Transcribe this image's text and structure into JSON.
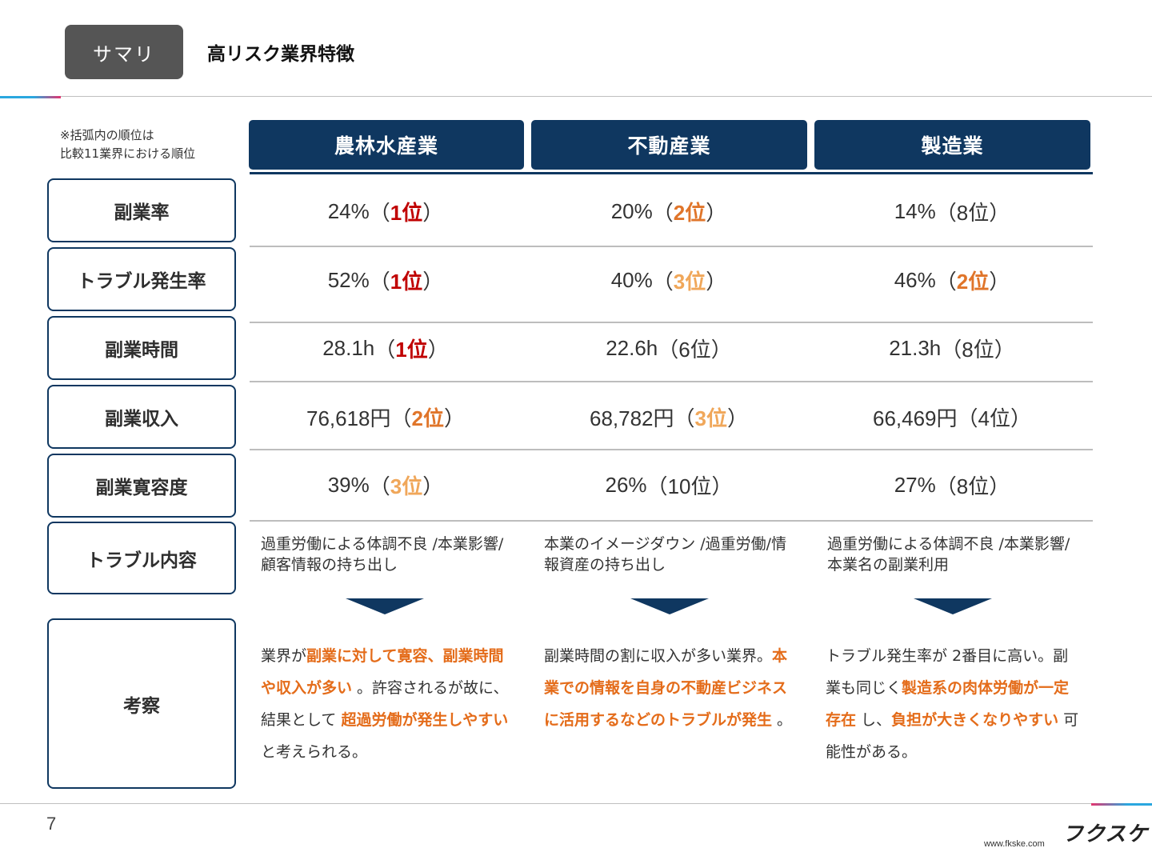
{
  "header": {
    "tag": "サマリ",
    "title": "高リスク業界特徴"
  },
  "note": {
    "line1": "※括弧内の順位は",
    "line2": "比較11業界における順位"
  },
  "columns": [
    "農林水産業",
    "不動産業",
    "製造業"
  ],
  "rows": [
    {
      "label": "副業率",
      "cells": [
        {
          "value": "24%",
          "rank": "1位",
          "level": "r1"
        },
        {
          "value": "20%",
          "rank": "2位",
          "level": "r2"
        },
        {
          "value": "14%",
          "rank": "8位",
          "level": ""
        }
      ]
    },
    {
      "label": "トラブル発生率",
      "cells": [
        {
          "value": "52%",
          "rank": "1位",
          "level": "r1"
        },
        {
          "value": "40%",
          "rank": "3位",
          "level": "r3"
        },
        {
          "value": "46%",
          "rank": "2位",
          "level": "r2"
        }
      ]
    },
    {
      "label": "副業時間",
      "cells": [
        {
          "value": "28.1h",
          "rank": "1位",
          "level": "r1"
        },
        {
          "value": "22.6h",
          "rank": "6位",
          "level": ""
        },
        {
          "value": "21.3h",
          "rank": "8位",
          "level": ""
        }
      ]
    },
    {
      "label": "副業収入",
      "cells": [
        {
          "value": "76,618円",
          "rank": "2位",
          "level": "r2"
        },
        {
          "value": "68,782円",
          "rank": "3位",
          "level": "r3"
        },
        {
          "value": "66,469円",
          "rank": "4位",
          "level": ""
        }
      ]
    },
    {
      "label": "副業寛容度",
      "cells": [
        {
          "value": "39%",
          "rank": "3位",
          "level": "r3"
        },
        {
          "value": "26%",
          "rank": "10位",
          "level": ""
        },
        {
          "value": "27%",
          "rank": "8位",
          "level": ""
        }
      ]
    }
  ],
  "trouble": {
    "label": "トラブル内容",
    "items": [
      "過重労働による体調不良 /本業影響/顧客情報の持ち出し",
      "本業のイメージダウン /過重労働/情報資産の持ち出し",
      "過重労働による体調不良 /本業影響/本業名の副業利用"
    ]
  },
  "insight": {
    "label": "考察",
    "items": [
      [
        {
          "t": "業界が"
        },
        {
          "t": "副業に対して寛容、副業時間や収入が多い",
          "hl": true
        },
        {
          "t": " 。許容されるが故に、結果として "
        },
        {
          "t": "超過労働が発生しやすい",
          "hl": true
        },
        {
          "t": " と考えられる。"
        }
      ],
      [
        {
          "t": "副業時間の割に収入が多い業界。"
        },
        {
          "t": "本業での情報を自身の不動産ビジネスに活用するなどのトラブルが発生",
          "hl": true
        },
        {
          "t": " 。"
        }
      ],
      [
        {
          "t": "トラブル発生率が 2番目に高い。副業も同じく"
        },
        {
          "t": "製造系の肉体労働が一定存在",
          "hl": true
        },
        {
          "t": " し、"
        },
        {
          "t": "負担が大きくなりやすい",
          "hl": true
        },
        {
          "t": " 可能性がある。"
        }
      ]
    ]
  },
  "footer": {
    "page": "7",
    "logo": "フクスケ",
    "url": "www.fkske.com"
  },
  "colors": {
    "navy": "#0f3760",
    "rank1": "#c00000",
    "rank2": "#e0752a",
    "rank3": "#f0a75a",
    "highlight": "#e46c1a"
  }
}
